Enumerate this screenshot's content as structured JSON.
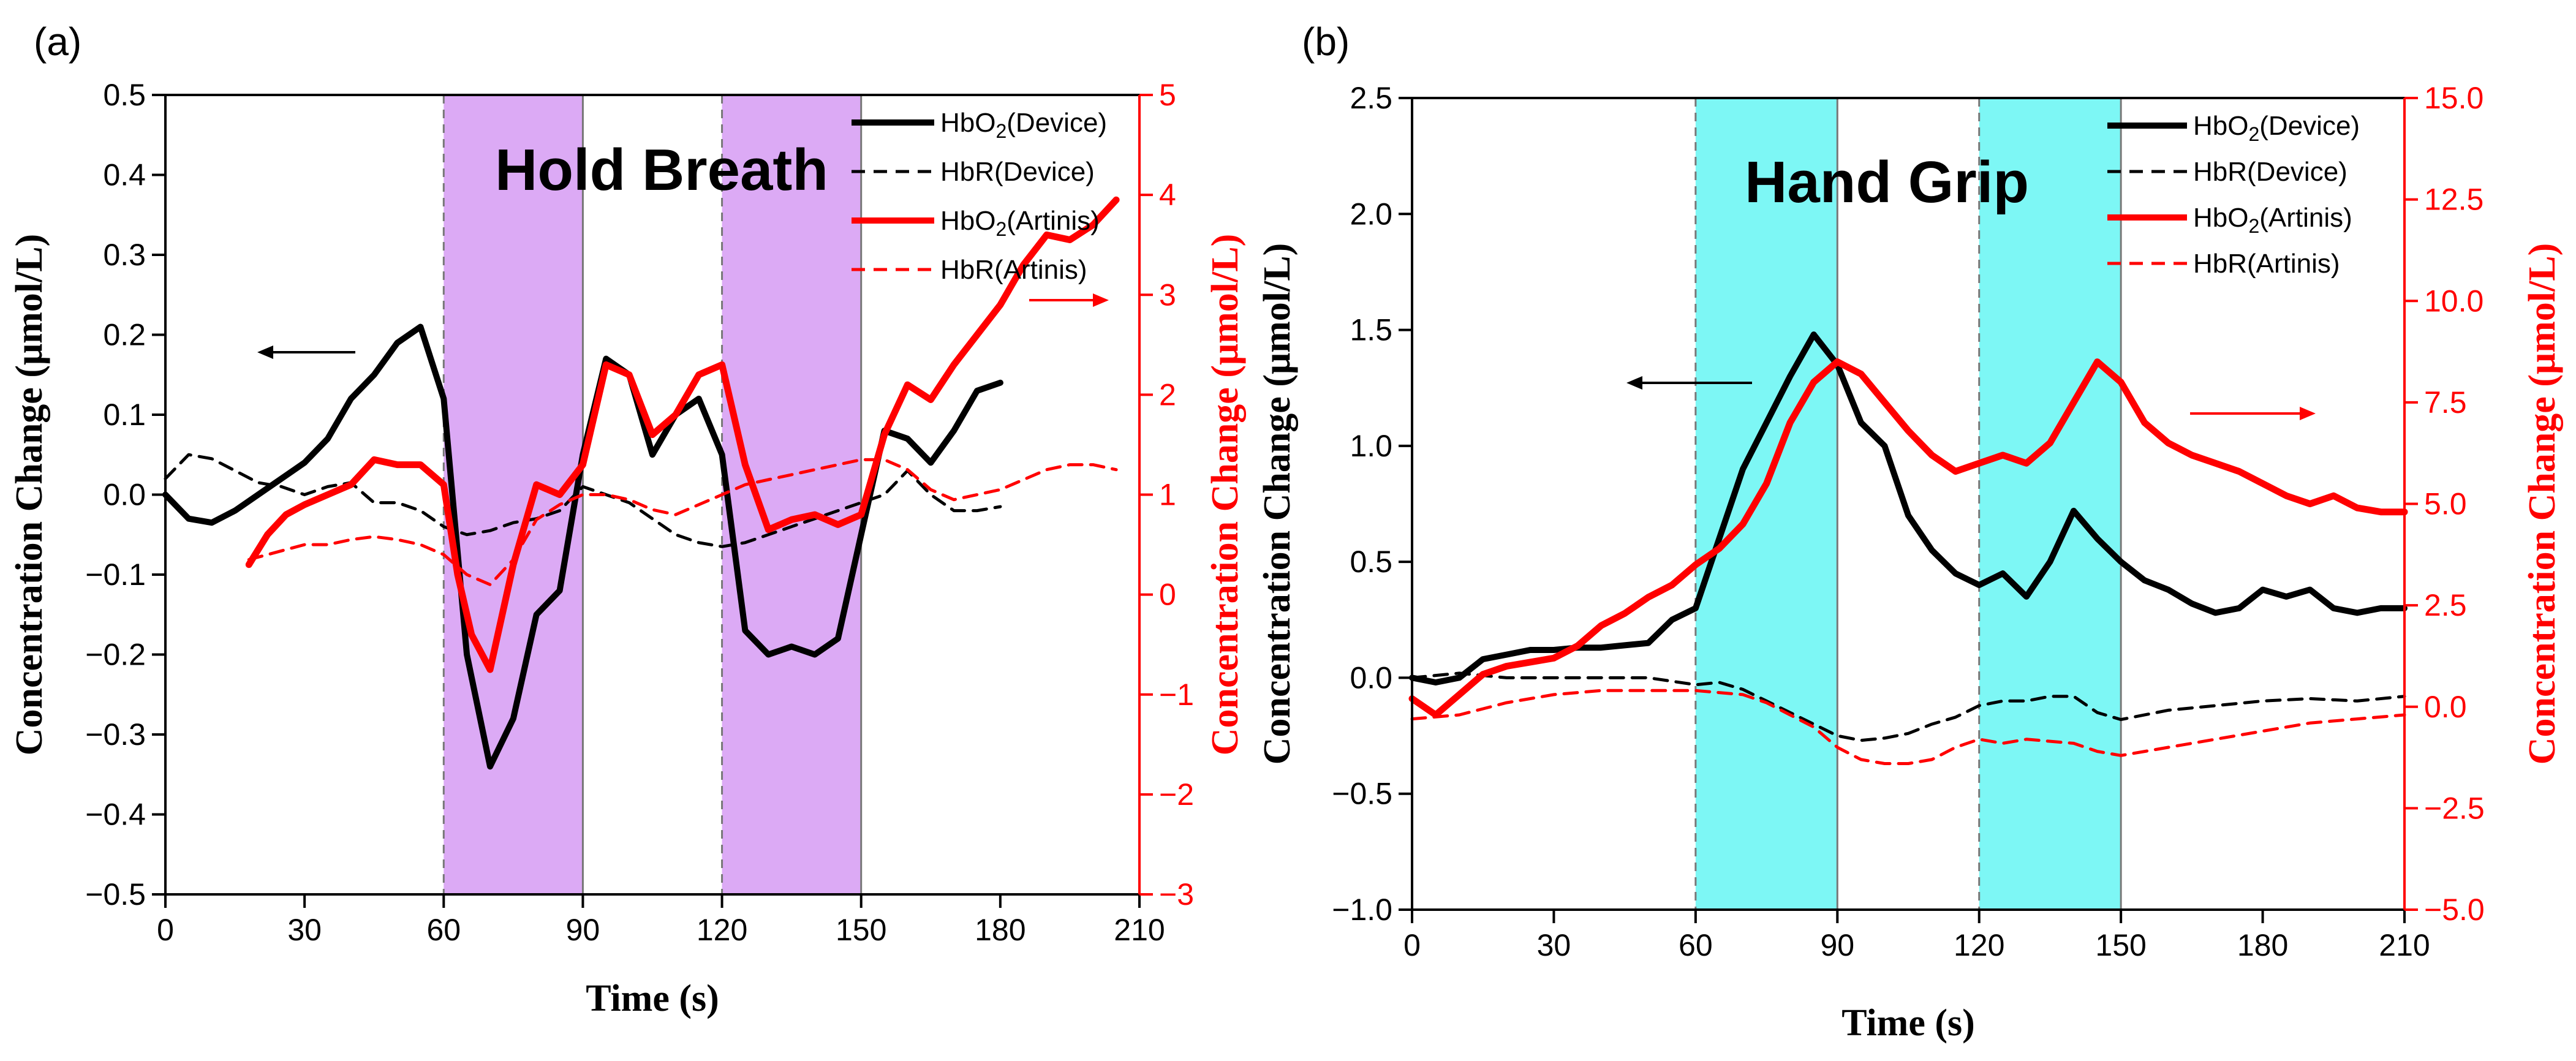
{
  "chart_data": [
    {
      "panel": "(a)",
      "type": "line",
      "title": "Hold Breath",
      "xlabel": "Time (s)",
      "ylabel_left": "Concentration Change (μmol/L)",
      "ylabel_right": "Concentration Change (μmol/L)",
      "xlim": [
        0,
        210
      ],
      "xticks": [
        "0",
        "30",
        "60",
        "90",
        "120",
        "150",
        "180",
        "210"
      ],
      "ylim_left": [
        -0.5,
        0.5
      ],
      "yticks_left": [
        "−0.5",
        "−0.4",
        "−0.3",
        "−0.2",
        "−0.1",
        "0.0",
        "0.1",
        "0.2",
        "0.3",
        "0.4",
        "0.5"
      ],
      "ylim_right": [
        -3,
        5
      ],
      "yticks_right": [
        "−3",
        "−2",
        "−1",
        "0",
        "1",
        "2",
        "3",
        "4",
        "5"
      ],
      "shaded": [
        [
          60,
          90
        ],
        [
          120,
          150
        ]
      ],
      "shade_color": "#dcaaf5",
      "legend": [
        "HbO2(Device)",
        "HbR(Device)",
        "HbO2(Artinis)",
        "HbR(Artinis)"
      ],
      "series": [
        {
          "name": "HbO2(Device)",
          "axis": "left",
          "color": "#000000",
          "style": "solid",
          "x": [
            0,
            5,
            10,
            15,
            20,
            25,
            30,
            35,
            40,
            45,
            50,
            55,
            60,
            65,
            70,
            75,
            80,
            85,
            90,
            95,
            100,
            105,
            110,
            115,
            120,
            125,
            130,
            135,
            140,
            145,
            150,
            155,
            160,
            165,
            170,
            175,
            180
          ],
          "y": [
            0.0,
            -0.03,
            -0.035,
            -0.02,
            0.0,
            0.02,
            0.04,
            0.07,
            0.12,
            0.15,
            0.19,
            0.21,
            0.12,
            -0.2,
            -0.34,
            -0.28,
            -0.15,
            -0.12,
            0.05,
            0.17,
            0.15,
            0.05,
            0.1,
            0.12,
            0.05,
            -0.17,
            -0.2,
            -0.19,
            -0.2,
            -0.18,
            -0.05,
            0.08,
            0.07,
            0.04,
            0.08,
            0.13,
            0.14
          ]
        },
        {
          "name": "HbR(Device)",
          "axis": "left",
          "color": "#000000",
          "style": "dash",
          "x": [
            0,
            5,
            10,
            15,
            20,
            25,
            30,
            35,
            40,
            45,
            50,
            55,
            60,
            65,
            70,
            75,
            80,
            85,
            90,
            95,
            100,
            105,
            110,
            115,
            120,
            125,
            130,
            135,
            140,
            145,
            150,
            155,
            160,
            165,
            170,
            175,
            180
          ],
          "y": [
            0.02,
            0.05,
            0.045,
            0.03,
            0.015,
            0.01,
            0.0,
            0.01,
            0.015,
            -0.01,
            -0.01,
            -0.02,
            -0.04,
            -0.05,
            -0.045,
            -0.035,
            -0.03,
            -0.02,
            0.01,
            0.0,
            -0.01,
            -0.03,
            -0.05,
            -0.06,
            -0.065,
            -0.06,
            -0.05,
            -0.04,
            -0.03,
            -0.02,
            -0.01,
            0.0,
            0.03,
            0.0,
            -0.02,
            -0.02,
            -0.015
          ]
        },
        {
          "name": "HbO2(Artinis)",
          "axis": "right",
          "color": "#ff0000",
          "style": "solid",
          "x": [
            18,
            22,
            26,
            30,
            35,
            40,
            45,
            50,
            55,
            60,
            63,
            66,
            70,
            75,
            80,
            85,
            90,
            95,
            100,
            105,
            110,
            115,
            120,
            125,
            130,
            135,
            140,
            145,
            150,
            155,
            160,
            165,
            170,
            175,
            180,
            185,
            190,
            195,
            200,
            205
          ],
          "y": [
            0.3,
            0.6,
            0.8,
            0.9,
            1.0,
            1.1,
            1.35,
            1.3,
            1.3,
            1.1,
            0.2,
            -0.4,
            -0.75,
            0.3,
            1.1,
            1.0,
            1.3,
            2.3,
            2.2,
            1.6,
            1.8,
            2.2,
            2.3,
            1.3,
            0.65,
            0.75,
            0.8,
            0.7,
            0.8,
            1.6,
            2.1,
            1.95,
            2.3,
            2.6,
            2.9,
            3.3,
            3.6,
            3.55,
            3.7,
            3.95
          ]
        },
        {
          "name": "HbR(Artinis)",
          "axis": "right",
          "color": "#ff0000",
          "style": "dash",
          "x": [
            18,
            22,
            26,
            30,
            35,
            40,
            45,
            50,
            55,
            60,
            65,
            70,
            75,
            80,
            85,
            90,
            95,
            100,
            105,
            110,
            115,
            120,
            125,
            130,
            135,
            140,
            145,
            150,
            155,
            160,
            165,
            170,
            175,
            180,
            185,
            190,
            195,
            200,
            205
          ],
          "y": [
            0.35,
            0.4,
            0.45,
            0.5,
            0.5,
            0.55,
            0.58,
            0.55,
            0.5,
            0.4,
            0.2,
            0.1,
            0.35,
            0.75,
            0.9,
            1.0,
            1.0,
            0.95,
            0.85,
            0.8,
            0.9,
            1.0,
            1.1,
            1.15,
            1.2,
            1.25,
            1.3,
            1.35,
            1.35,
            1.25,
            1.05,
            0.95,
            1.0,
            1.05,
            1.15,
            1.25,
            1.3,
            1.3,
            1.25
          ]
        }
      ]
    },
    {
      "panel": "(b)",
      "type": "line",
      "title": "Hand Grip",
      "xlabel": "Time (s)",
      "ylabel_left": "Concentration Change (μmol/L)",
      "ylabel_right": "Concentration Change (μmol/L)",
      "xlim": [
        0,
        210
      ],
      "xticks": [
        "0",
        "30",
        "60",
        "90",
        "120",
        "150",
        "180",
        "210"
      ],
      "ylim_left": [
        -1.0,
        2.5
      ],
      "yticks_left": [
        "−1.0",
        "−0.5",
        "0.0",
        "0.5",
        "1.0",
        "1.5",
        "2.0",
        "2.5"
      ],
      "ylim_right": [
        -5.0,
        15.0
      ],
      "yticks_right": [
        "−5.0",
        "−2.5",
        "0.0",
        "2.5",
        "5.0",
        "7.5",
        "10.0",
        "12.5",
        "15.0"
      ],
      "shaded": [
        [
          60,
          90
        ],
        [
          120,
          150
        ]
      ],
      "shade_color": "#7df7f5",
      "legend": [
        "HbO2(Device)",
        "HbR(Device)",
        "HbO2(Artinis)",
        "HbR(Artinis)"
      ],
      "series": [
        {
          "name": "HbO2(Device)",
          "axis": "left",
          "color": "#000000",
          "style": "solid",
          "x": [
            0,
            5,
            10,
            15,
            20,
            25,
            30,
            35,
            40,
            45,
            50,
            55,
            60,
            65,
            70,
            75,
            80,
            85,
            90,
            95,
            100,
            105,
            110,
            115,
            120,
            125,
            130,
            135,
            140,
            145,
            150,
            155,
            160,
            165,
            170,
            175,
            180,
            185,
            190,
            195,
            200,
            205,
            210
          ],
          "y": [
            0.0,
            -0.02,
            0.0,
            0.08,
            0.1,
            0.12,
            0.12,
            0.13,
            0.13,
            0.14,
            0.15,
            0.25,
            0.3,
            0.6,
            0.9,
            1.1,
            1.3,
            1.48,
            1.35,
            1.1,
            1.0,
            0.7,
            0.55,
            0.45,
            0.4,
            0.45,
            0.35,
            0.5,
            0.72,
            0.6,
            0.5,
            0.42,
            0.38,
            0.32,
            0.28,
            0.3,
            0.38,
            0.35,
            0.38,
            0.3,
            0.28,
            0.3,
            0.3
          ]
        },
        {
          "name": "HbR(Device)",
          "axis": "left",
          "color": "#000000",
          "style": "dash",
          "x": [
            0,
            10,
            20,
            30,
            40,
            50,
            60,
            65,
            70,
            75,
            80,
            85,
            90,
            95,
            100,
            105,
            110,
            115,
            120,
            125,
            130,
            135,
            140,
            145,
            150,
            160,
            170,
            180,
            190,
            200,
            210
          ],
          "y": [
            0.0,
            0.02,
            0.0,
            0.0,
            0.0,
            0.0,
            -0.03,
            -0.02,
            -0.05,
            -0.1,
            -0.15,
            -0.2,
            -0.25,
            -0.27,
            -0.26,
            -0.24,
            -0.2,
            -0.17,
            -0.12,
            -0.1,
            -0.1,
            -0.08,
            -0.08,
            -0.15,
            -0.18,
            -0.14,
            -0.12,
            -0.1,
            -0.09,
            -0.1,
            -0.08
          ]
        },
        {
          "name": "HbO2(Artinis)",
          "axis": "right",
          "color": "#ff0000",
          "style": "solid",
          "x": [
            0,
            5,
            10,
            15,
            20,
            25,
            30,
            35,
            40,
            45,
            50,
            55,
            60,
            65,
            70,
            75,
            80,
            85,
            90,
            95,
            100,
            105,
            110,
            115,
            120,
            125,
            130,
            135,
            140,
            145,
            150,
            155,
            160,
            165,
            170,
            175,
            180,
            185,
            190,
            195,
            200,
            205,
            210
          ],
          "y": [
            0.2,
            -0.2,
            0.3,
            0.8,
            1.0,
            1.1,
            1.2,
            1.5,
            2.0,
            2.3,
            2.7,
            3.0,
            3.5,
            3.9,
            4.5,
            5.5,
            7.0,
            8.0,
            8.5,
            8.2,
            7.5,
            6.8,
            6.2,
            5.8,
            6.0,
            6.2,
            6.0,
            6.5,
            7.5,
            8.5,
            8.0,
            7.0,
            6.5,
            6.2,
            6.0,
            5.8,
            5.5,
            5.2,
            5.0,
            5.2,
            4.9,
            4.8,
            4.8
          ]
        },
        {
          "name": "HbR(Artinis)",
          "axis": "right",
          "color": "#ff0000",
          "style": "dash",
          "x": [
            0,
            10,
            20,
            30,
            40,
            50,
            60,
            65,
            70,
            75,
            80,
            85,
            90,
            95,
            100,
            105,
            110,
            115,
            120,
            125,
            130,
            135,
            140,
            145,
            150,
            160,
            170,
            180,
            190,
            200,
            210
          ],
          "y": [
            -0.3,
            -0.2,
            0.1,
            0.3,
            0.4,
            0.4,
            0.4,
            0.35,
            0.3,
            0.1,
            -0.2,
            -0.5,
            -1.0,
            -1.3,
            -1.4,
            -1.4,
            -1.3,
            -1.0,
            -0.8,
            -0.9,
            -0.8,
            -0.85,
            -0.9,
            -1.1,
            -1.2,
            -1.0,
            -0.8,
            -0.6,
            -0.4,
            -0.3,
            -0.2
          ]
        }
      ]
    }
  ]
}
